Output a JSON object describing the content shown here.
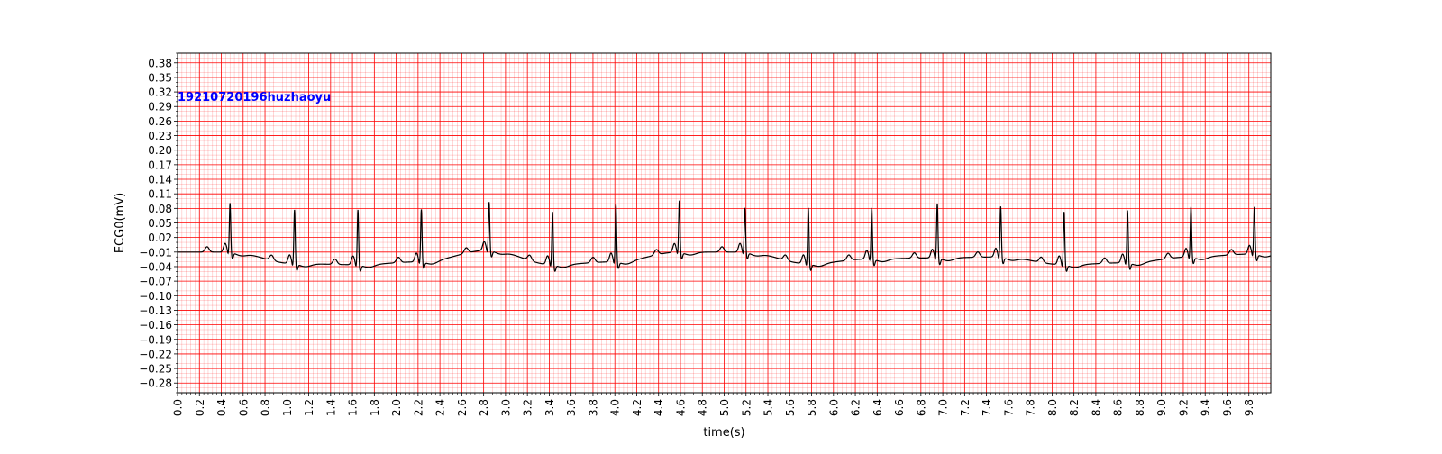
{
  "chart_data": {
    "type": "line",
    "title": "",
    "xlabel": "time(s)",
    "ylabel": "ECG0(mV)",
    "annotation": "19210720196huzhaoyu",
    "xlim": [
      0,
      10
    ],
    "ylim": [
      -0.3,
      0.4
    ],
    "x_ticks": [
      "0.0",
      "0.2",
      "0.4",
      "0.6",
      "0.8",
      "1.0",
      "1.2",
      "1.4",
      "1.6",
      "1.8",
      "2.0",
      "2.2",
      "2.4",
      "2.6",
      "2.8",
      "3.0",
      "3.2",
      "3.4",
      "3.6",
      "3.8",
      "4.0",
      "4.2",
      "4.4",
      "4.6",
      "4.8",
      "5.0",
      "5.2",
      "5.4",
      "5.6",
      "5.8",
      "6.0",
      "6.2",
      "6.4",
      "6.6",
      "6.8",
      "7.0",
      "7.2",
      "7.4",
      "7.6",
      "7.8",
      "8.0",
      "8.2",
      "8.4",
      "8.6",
      "8.8",
      "9.0",
      "9.2",
      "9.4",
      "9.6",
      "9.8"
    ],
    "y_ticks": [
      "−0.28",
      "−0.25",
      "−0.22",
      "−0.19",
      "−0.16",
      "−0.13",
      "−0.10",
      "−0.07",
      "−0.04",
      "−0.01",
      "0.02",
      "0.05",
      "0.08",
      "0.11",
      "0.14",
      "0.17",
      "0.20",
      "0.23",
      "0.26",
      "0.29",
      "0.32",
      "0.35",
      "0.38"
    ],
    "grid": true,
    "colors": {
      "grid": "#ff0000",
      "line": "#000000",
      "annotation": "#0000ff"
    },
    "series": [
      {
        "sample_rate_hz": 100,
        "beats": [
          {
            "t": 0.48,
            "r": 0.092,
            "baseline": -0.01
          },
          {
            "t": 1.07,
            "r": 0.078,
            "baseline": -0.034
          },
          {
            "t": 1.65,
            "r": 0.078,
            "baseline": -0.036
          },
          {
            "t": 2.23,
            "r": 0.079,
            "baseline": -0.03
          },
          {
            "t": 2.85,
            "r": 0.094,
            "baseline": -0.006
          },
          {
            "t": 3.43,
            "r": 0.074,
            "baseline": -0.036
          },
          {
            "t": 4.01,
            "r": 0.09,
            "baseline": -0.03
          },
          {
            "t": 4.59,
            "r": 0.097,
            "baseline": -0.01
          },
          {
            "t": 5.19,
            "r": 0.082,
            "baseline": -0.01
          },
          {
            "t": 5.77,
            "r": 0.082,
            "baseline": -0.034
          },
          {
            "t": 6.35,
            "r": 0.082,
            "baseline": -0.024
          },
          {
            "t": 6.95,
            "r": 0.091,
            "baseline": -0.022
          },
          {
            "t": 7.53,
            "r": 0.085,
            "baseline": -0.02
          },
          {
            "t": 8.11,
            "r": 0.074,
            "baseline": -0.036
          },
          {
            "t": 8.69,
            "r": 0.077,
            "baseline": -0.032
          },
          {
            "t": 9.27,
            "r": 0.084,
            "baseline": -0.02
          },
          {
            "t": 9.85,
            "r": 0.084,
            "baseline": -0.014
          }
        ]
      }
    ]
  }
}
